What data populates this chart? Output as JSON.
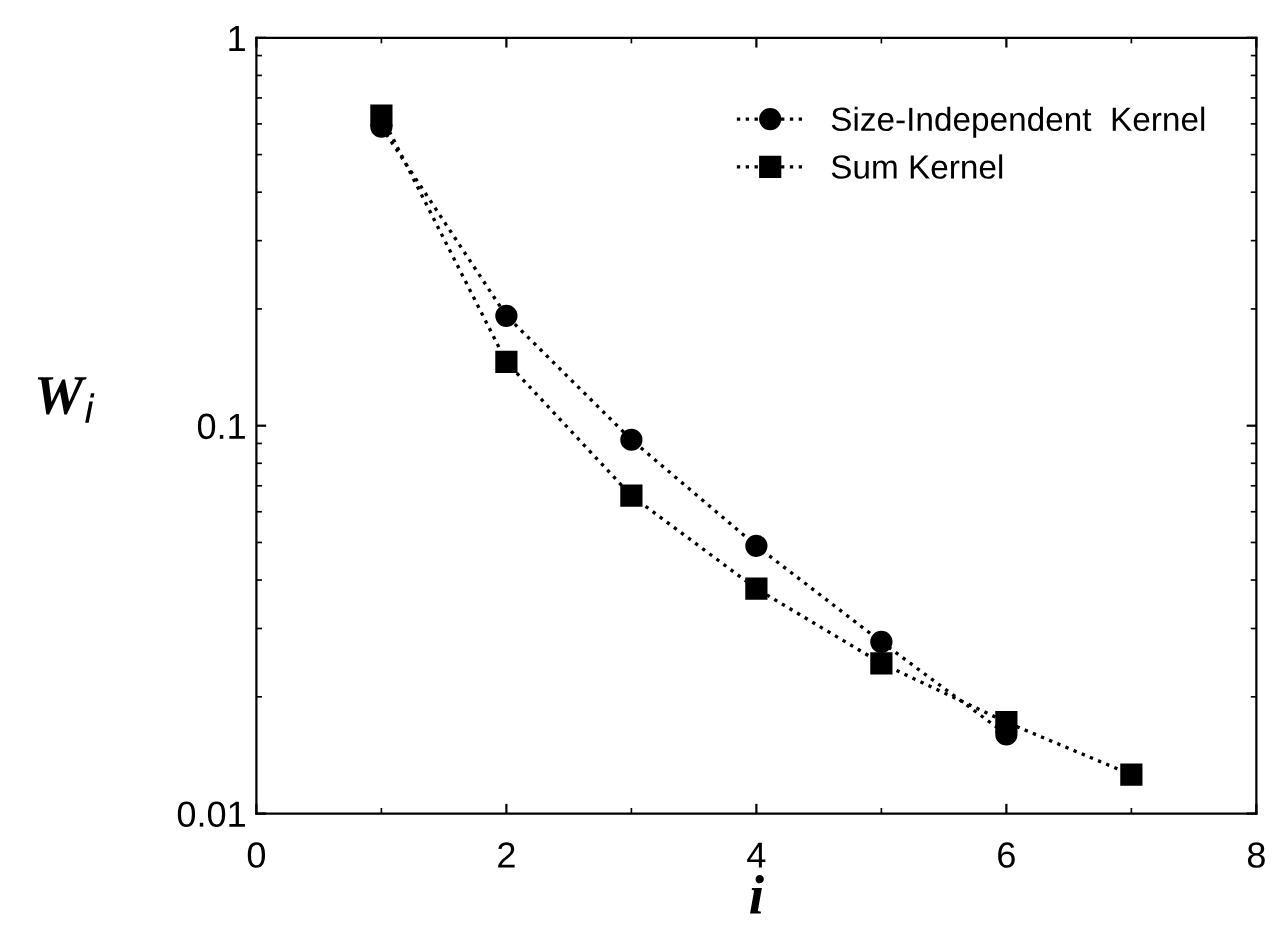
{
  "chart_data": {
    "type": "line",
    "xlabel": "i",
    "ylabel": "W$_{i}$",
    "x": [
      1,
      2,
      3,
      4,
      5,
      6,
      7
    ],
    "series": [
      {
        "name": "Size-Independent  Kernel",
        "color": "#000000",
        "marker": "circle",
        "values": [
          0.59,
          0.192,
          0.092,
          0.049,
          0.0277,
          0.016,
          null
        ]
      },
      {
        "name": "Sum Kernel",
        "color": "#000000",
        "marker": "square",
        "values": [
          0.63,
          0.146,
          0.066,
          0.038,
          0.0244,
          0.0172,
          0.0126
        ]
      }
    ],
    "log": "y",
    "xlim": [
      0,
      8
    ],
    "ylim": [
      0.01,
      1
    ],
    "xticks": [
      0,
      2,
      4,
      6,
      8
    ],
    "yticks": [
      0.01,
      0.1,
      1
    ],
    "line_style": "dotted",
    "grid": false,
    "legend": "top right"
  }
}
